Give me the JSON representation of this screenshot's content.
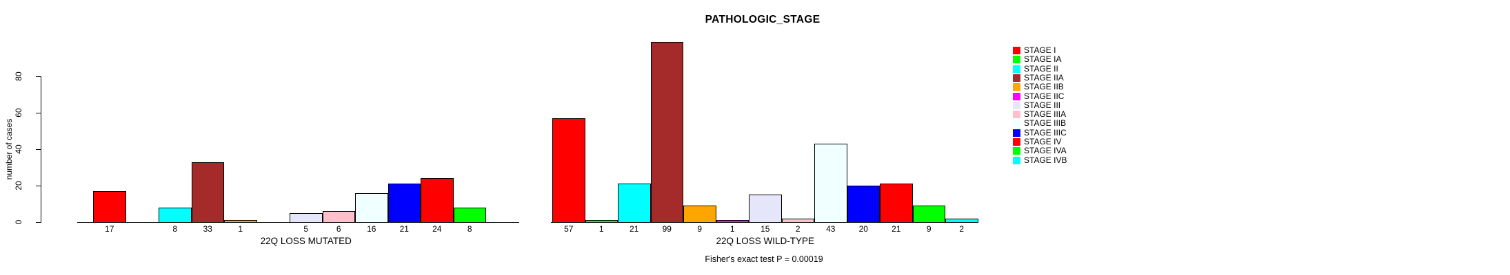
{
  "chart_data": {
    "type": "bar",
    "title": "PATHOLOGIC_STAGE",
    "ylabel": "number of cases",
    "ylim": [
      0,
      80
    ],
    "yticks": [
      0,
      20,
      40,
      60,
      80
    ],
    "grid": false,
    "legend_position": "right",
    "categories": [
      "STAGE I",
      "STAGE IA",
      "STAGE II",
      "STAGE IIA",
      "STAGE IIB",
      "STAGE IIC",
      "STAGE III",
      "STAGE IIIA",
      "STAGE IIIB",
      "STAGE IIIC",
      "STAGE IV",
      "STAGE IVA",
      "STAGE IVB"
    ],
    "colors": [
      "#FF0000",
      "#00FF00",
      "#00FFFF",
      "#A52A2A",
      "#FFA500",
      "#FF00FF",
      "#E6E6FA",
      "#FFC0CB",
      "#F0FFFF",
      "#0000FF",
      "#FF0000",
      "#00FF00",
      "#00FFFF"
    ],
    "series": [
      {
        "name": "22Q LOSS MUTATED",
        "values": [
          17,
          0,
          8,
          33,
          1,
          0,
          5,
          6,
          16,
          21,
          24,
          8,
          0
        ]
      },
      {
        "name": "22Q LOSS WILD-TYPE",
        "values": [
          57,
          1,
          21,
          99,
          9,
          1,
          15,
          2,
          43,
          20,
          21,
          9,
          2
        ]
      }
    ],
    "bar_value_labels_shown_only_for_nonzero": true,
    "annotation": "Fisher's exact test P = 0.00019"
  }
}
